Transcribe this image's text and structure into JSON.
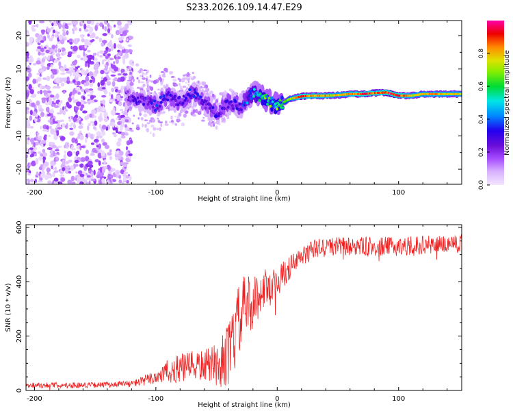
{
  "title": "S233.2026.109.14.47.E29",
  "colors": {
    "snr_line": "#ee2222",
    "colormap": [
      "#f2e6ff",
      "#d9b3ff",
      "#a64dff",
      "#7a1ae6",
      "#2200ee",
      "#0088ff",
      "#00e5e5",
      "#00dd33",
      "#e0e000",
      "#ff8800",
      "#ee0000",
      "#ff00aa"
    ]
  },
  "chart_data": [
    {
      "type": "heatmap",
      "title": "S233.2026.109.14.47.E29",
      "xlabel": "Height of straight line (km)",
      "ylabel": "Frequency (Hz)",
      "xlim": [
        -207,
        152
      ],
      "ylim": [
        -24.5,
        24.5
      ],
      "x_ticks": [
        -200,
        -100,
        0,
        100
      ],
      "x_tick_labels": [
        "-200",
        "-100",
        "0",
        "100"
      ],
      "y_ticks": [
        -20,
        -10,
        0,
        10,
        20
      ],
      "y_tick_labels": [
        "-20",
        "-10",
        "0",
        "10",
        "20"
      ],
      "colorbar": {
        "label": "Normalized spectral amplitude",
        "range": [
          0,
          1
        ],
        "ticks": [
          0.0,
          0.2,
          0.4,
          0.6,
          0.8
        ],
        "tick_labels": [
          "0.0",
          "0.2",
          "0.4",
          "0.6",
          "0.8"
        ]
      },
      "noise_region": {
        "x_range": [
          -207,
          -120
        ],
        "freq_range": [
          -24.5,
          24.5
        ],
        "amplitude_range": [
          0.02,
          0.2
        ]
      },
      "signal_ridge": {
        "x": [
          -125,
          -110,
          -100,
          -90,
          -80,
          -70,
          -60,
          -50,
          -40,
          -30,
          -20,
          -10,
          0,
          10,
          20,
          30,
          40,
          50,
          60,
          70,
          80,
          90,
          100,
          110,
          120,
          130,
          140,
          150
        ],
        "freq_hz": [
          2,
          0.5,
          -1,
          2,
          0,
          3,
          0,
          -3,
          0,
          -1,
          3,
          1,
          -1,
          1,
          1.8,
          2,
          2,
          2.2,
          2.5,
          2.5,
          2.8,
          3,
          2,
          2,
          2.5,
          2.5,
          2.5,
          2.5
        ],
        "amplitude": [
          0.2,
          0.3,
          0.32,
          0.3,
          0.3,
          0.32,
          0.28,
          0.3,
          0.3,
          0.32,
          0.45,
          0.6,
          0.6,
          0.7,
          0.95,
          0.85,
          0.85,
          0.8,
          0.85,
          0.95,
          0.9,
          0.95,
          0.95,
          0.8,
          0.8,
          0.85,
          0.8,
          0.8
        ]
      }
    },
    {
      "type": "line",
      "xlabel": "Height of straight line (km)",
      "ylabel": "SNR (10 * v/v)",
      "xlim": [
        -207,
        152
      ],
      "ylim": [
        0,
        610
      ],
      "x_ticks": [
        -200,
        -100,
        0,
        100
      ],
      "x_tick_labels": [
        "-200",
        "-100",
        "0",
        "100"
      ],
      "y_ticks": [
        0,
        200,
        400,
        600
      ],
      "y_tick_labels": [
        "0",
        "200",
        "400",
        "600"
      ],
      "series": [
        {
          "name": "SNR",
          "x": [
            -207,
            -180,
            -150,
            -120,
            -110,
            -100,
            -90,
            -80,
            -70,
            -60,
            -50,
            -40,
            -35,
            -30,
            -25,
            -20,
            -15,
            -10,
            -5,
            0,
            10,
            20,
            30,
            40,
            50,
            60,
            80,
            100,
            120,
            140,
            152
          ],
          "y": [
            20,
            20,
            20,
            25,
            35,
            50,
            70,
            80,
            90,
            90,
            100,
            130,
            200,
            280,
            310,
            320,
            350,
            380,
            390,
            400,
            450,
            490,
            520,
            530,
            530,
            530,
            530,
            530,
            535,
            540,
            545
          ],
          "noise_amplitude": [
            10,
            10,
            10,
            12,
            18,
            30,
            45,
            55,
            55,
            60,
            70,
            120,
            140,
            130,
            120,
            100,
            80,
            70,
            60,
            55,
            45,
            40,
            35,
            35,
            35,
            35,
            35,
            35,
            35,
            35,
            35
          ]
        }
      ]
    }
  ]
}
